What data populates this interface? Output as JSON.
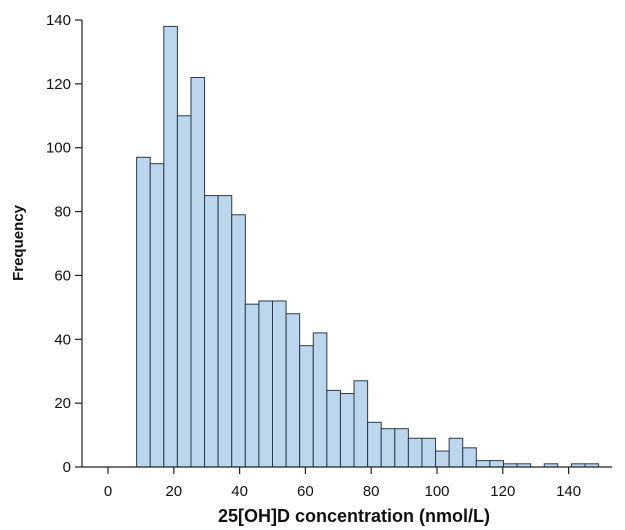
{
  "chart_data": {
    "type": "bar",
    "subtype": "histogram",
    "title": "",
    "xlabel": "25[OH]D concentration (nmol/L)",
    "ylabel": "Frequency",
    "bin_width": 4.13,
    "bin_start": 8.7,
    "values": [
      97,
      95,
      138,
      110,
      122,
      85,
      85,
      79,
      51,
      52,
      52,
      48,
      38,
      42,
      24,
      23,
      27,
      14,
      12,
      12,
      9,
      9,
      5,
      9,
      6,
      2,
      2,
      1,
      1,
      0,
      1,
      0,
      1,
      1
    ],
    "xlim": [
      -6,
      152
    ],
    "ylim": [
      0,
      142
    ],
    "x_ticks": [
      0,
      20,
      40,
      60,
      80,
      100,
      120,
      140
    ],
    "y_ticks": [
      0,
      20,
      40,
      60,
      80,
      100,
      120,
      140
    ],
    "grid": false,
    "legend": "none",
    "bar_fill": "#bcd6ee",
    "bar_stroke": "#2b3a4a"
  }
}
